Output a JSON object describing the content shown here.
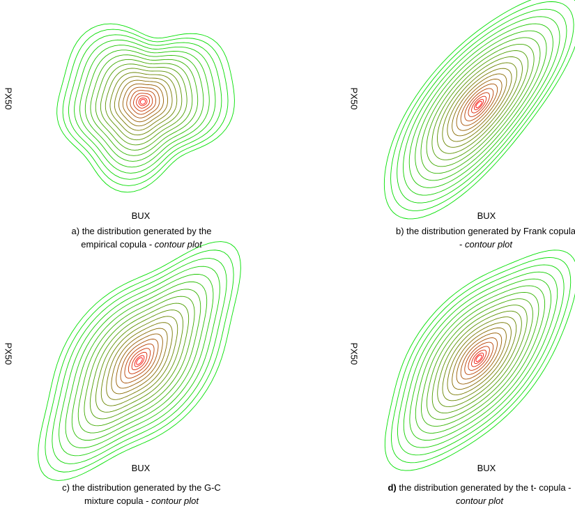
{
  "chart_data": [
    {
      "type": "contour",
      "panel": "a",
      "xlabel": "BUX",
      "ylabel": "PX50",
      "caption": {
        "prefix": "a)",
        "text": " the distribution generated by the empirical copula - ",
        "italic": "contour plot"
      },
      "color_low": "#00e000",
      "color_high": "#ff0000",
      "levels": 20
    },
    {
      "type": "contour",
      "panel": "b",
      "xlabel": "BUX",
      "ylabel": "PX50",
      "caption": {
        "prefix": "b)",
        "text": " the distribution generated by Frank copula - ",
        "italic": "contour plot"
      },
      "color_low": "#00e000",
      "color_high": "#ff0000",
      "levels": 20
    },
    {
      "type": "contour",
      "panel": "c",
      "xlabel": "BUX",
      "ylabel": "PX50",
      "caption": {
        "prefix": "c)",
        "text": " the distribution generated by the G-C mixture copula - ",
        "italic": "contour plot"
      },
      "color_low": "#00e000",
      "color_high": "#ff0000",
      "levels": 20
    },
    {
      "type": "contour",
      "panel": "d",
      "xlabel": "BUX",
      "ylabel": "PX50",
      "caption": {
        "prefix": "d)",
        "text": " the distribution generated by the t- copula - ",
        "italic": "contour plot"
      },
      "color_low": "#00e000",
      "color_high": "#ff0000",
      "levels": 20
    }
  ]
}
